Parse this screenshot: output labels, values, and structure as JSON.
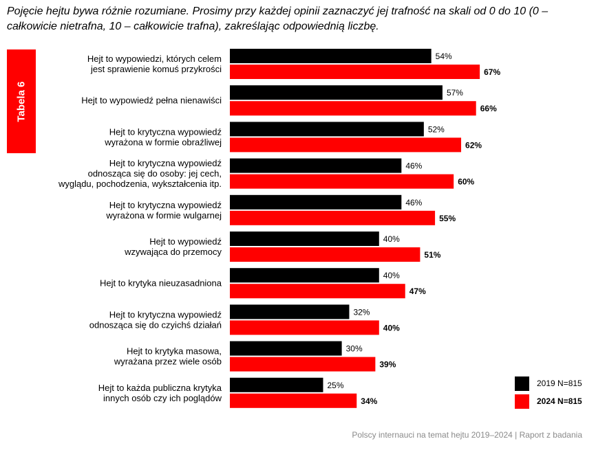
{
  "question": "Pojęcie hejtu bywa różnie rozumiane. Prosimy przy każdej opinii zaznaczyć jej trafność na skali od 0 do 10 (0 – całkowicie nietrafna, 10 – całkowicie trafna), zakreślając odpowiednią liczbę.",
  "table_label": "Tabela 6",
  "footer": "Polscy internauci na temat hejtu 2019–2024 | Raport z badania",
  "colors": {
    "series_2019": "#000000",
    "series_2024": "#ff0000"
  },
  "chart_data": {
    "type": "bar",
    "orientation": "horizontal",
    "value_unit": "%",
    "xlim": [
      0,
      100
    ],
    "grid": false,
    "legend_position": "bottom-right",
    "categories": [
      [
        "Hejt to wypowiedzi, których celem",
        "jest sprawienie komuś przykrości"
      ],
      [
        "Hejt to wypowiedź pełna nienawiści"
      ],
      [
        "Hejt to krytyczna wypowiedź",
        "wyrażona w formie obraźliwej"
      ],
      [
        "Hejt to krytyczna wypowiedź",
        "odnosząca się do osoby: jej cech,",
        "wyglądu, pochodzenia, wykształcenia itp."
      ],
      [
        "Hejt to krytyczna wypowiedź",
        "wyrażona w formie wulgarnej"
      ],
      [
        "Hejt to wypowiedź",
        "wzywająca do przemocy"
      ],
      [
        "Hejt to krytyka nieuzasadniona"
      ],
      [
        "Hejt to krytyczna wypowiedź",
        "odnosząca się do czyichś działań"
      ],
      [
        "Hejt to krytyka masowa,",
        "wyrażana przez wiele osób"
      ],
      [
        "Hejt to każda publiczna krytyka",
        "innych osób czy ich poglądów"
      ]
    ],
    "series": [
      {
        "name": "2019 N=815",
        "values": [
          54,
          57,
          52,
          46,
          46,
          40,
          40,
          32,
          30,
          25
        ]
      },
      {
        "name": "2024 N=815",
        "values": [
          67,
          66,
          62,
          60,
          55,
          51,
          47,
          40,
          39,
          34
        ]
      }
    ]
  }
}
